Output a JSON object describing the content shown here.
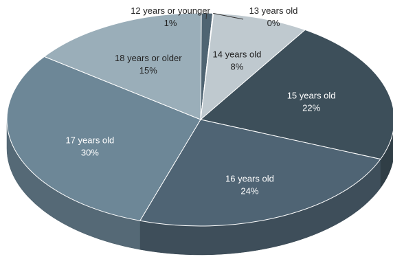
{
  "chart_data": {
    "type": "pie",
    "title": "",
    "slices": [
      {
        "label": "12 years or younger",
        "pct_label": "1%",
        "value": 1,
        "color": "#4f6472",
        "text_color": "#222222"
      },
      {
        "label": "13 years old",
        "pct_label": "0%",
        "value": 0,
        "color": "#6d7f8a",
        "text_color": "#222222"
      },
      {
        "label": "14 years old",
        "pct_label": "8%",
        "value": 8,
        "color": "#bfc9cf",
        "text_color": "#222222"
      },
      {
        "label": "15 years old",
        "pct_label": "22%",
        "value": 22,
        "color": "#3d4f5a",
        "text_color": "#ffffff"
      },
      {
        "label": "16 years old",
        "pct_label": "24%",
        "value": 24,
        "color": "#4f6474",
        "text_color": "#ffffff"
      },
      {
        "label": "17 years old",
        "pct_label": "30%",
        "value": 30,
        "color": "#6d8797",
        "text_color": "#ffffff"
      },
      {
        "label": "18 years or older",
        "pct_label": "15%",
        "value": 15,
        "color": "#9aaeb9",
        "text_color": "#222222"
      }
    ]
  }
}
